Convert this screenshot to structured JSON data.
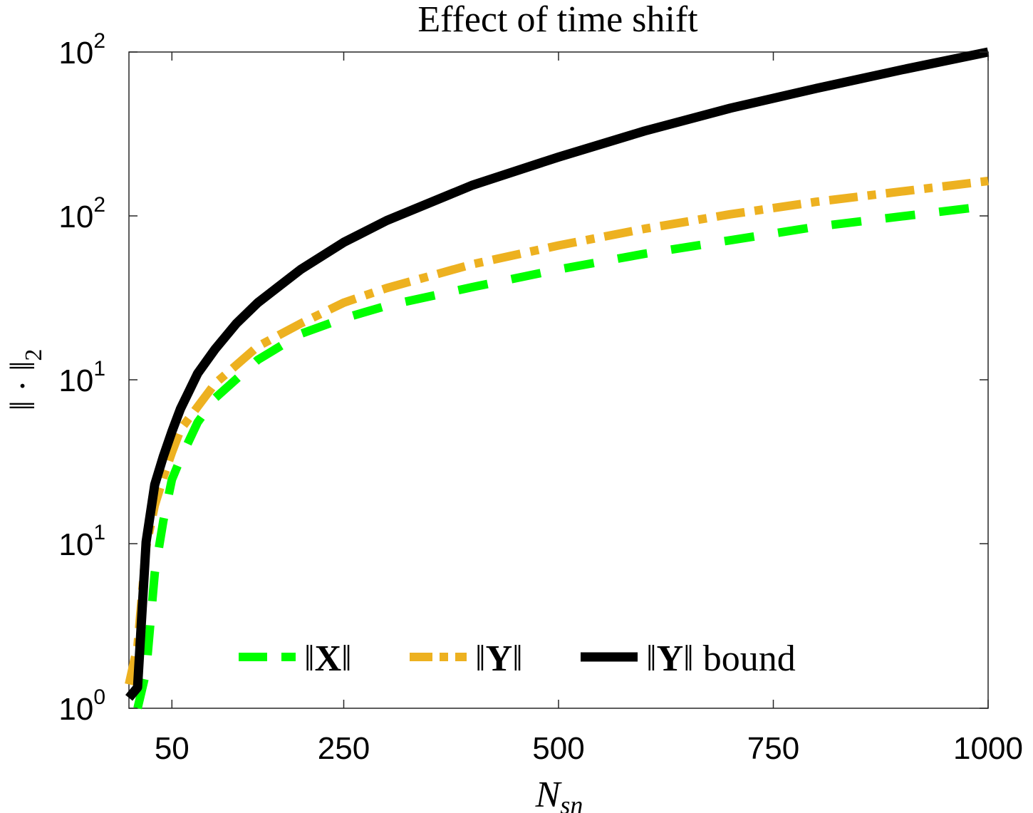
{
  "chart_data": {
    "type": "line",
    "title": "Effect of time shift",
    "xlabel": {
      "main": "N",
      "sub": "sn"
    },
    "ylabel": "‖ · ‖",
    "ylabel_sub": "2",
    "x_range": [
      0,
      1000
    ],
    "y_scale": "log",
    "x_ticks": [
      50,
      250,
      500,
      750,
      1000
    ],
    "y_tick_labels": [
      {
        "base": "10",
        "exp": "0"
      },
      {
        "base": "10",
        "exp": "1"
      },
      {
        "base": "10",
        "exp": "1"
      },
      {
        "base": "10",
        "exp": "2"
      },
      {
        "base": "10",
        "exp": "2"
      }
    ],
    "legend": {
      "placement": "bottom",
      "orientation": "horizontal"
    },
    "series": [
      {
        "name": "‖X‖",
        "name_bold": "X",
        "color": "#00ff00",
        "style": "dashed",
        "x": [
          10,
          20,
          30,
          40,
          50,
          60,
          80,
          100,
          150,
          200,
          250,
          300,
          400,
          500,
          600,
          700,
          800,
          900,
          1000
        ],
        "y": [
          1.0,
          1.35,
          2.3,
          2.8,
          3.2,
          3.4,
          3.75,
          3.98,
          4.35,
          4.6,
          4.75,
          4.87,
          5.05,
          5.22,
          5.37,
          5.5,
          5.63,
          5.73,
          5.83
        ]
      },
      {
        "name": "‖Y‖",
        "name_bold": "Y",
        "color": "#edb120",
        "style": "dash-dot",
        "x": [
          0,
          10,
          20,
          30,
          40,
          50,
          60,
          80,
          100,
          150,
          200,
          250,
          300,
          400,
          500,
          600,
          700,
          800,
          900,
          1000
        ],
        "y": [
          1.23,
          1.6,
          2.55,
          2.95,
          3.22,
          3.46,
          3.68,
          3.9,
          4.12,
          4.48,
          4.7,
          4.9,
          5.04,
          5.27,
          5.45,
          5.61,
          5.75,
          5.87,
          5.97,
          6.07
        ]
      },
      {
        "name": "‖Y‖ bound",
        "name_bold": "Y",
        "name_suffix": "bound",
        "color": "#000000",
        "style": "solid",
        "x": [
          0,
          10,
          20,
          30,
          40,
          50,
          60,
          80,
          100,
          125,
          150,
          200,
          250,
          300,
          400,
          500,
          600,
          700,
          800,
          900,
          1000
        ],
        "y": [
          1.1,
          1.2,
          2.6,
          3.15,
          3.42,
          3.66,
          3.88,
          4.22,
          4.45,
          4.7,
          4.9,
          5.22,
          5.48,
          5.69,
          6.03,
          6.3,
          6.55,
          6.77,
          6.96,
          7.14,
          7.31
        ]
      }
    ]
  }
}
